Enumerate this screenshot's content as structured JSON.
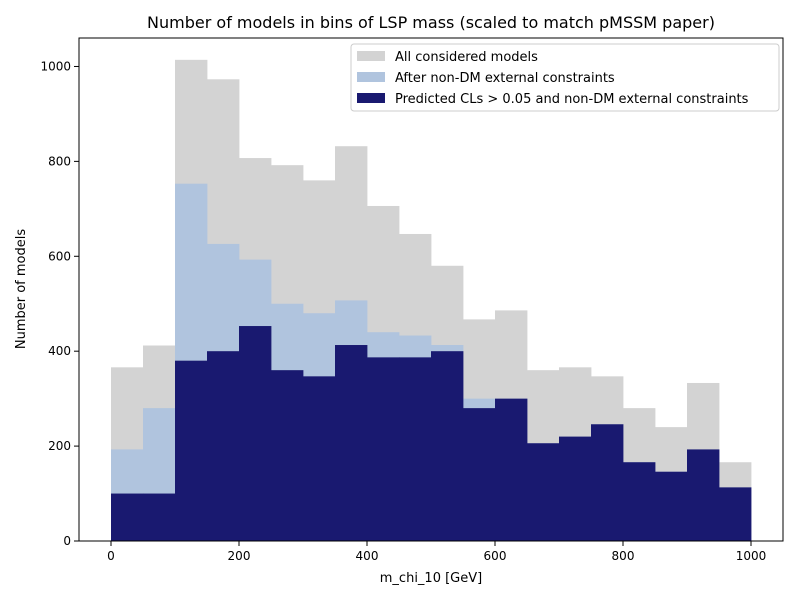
{
  "chart_data": {
    "type": "bar",
    "title": "Number of models in bins of LSP mass (scaled to match pMSSM paper)",
    "xlabel": "m_chi_10 [GeV]",
    "ylabel": "Number of models",
    "xlim": [
      -50,
      1050
    ],
    "ylim": [
      0,
      1060
    ],
    "bin_edges": [
      0,
      50,
      100,
      150,
      200,
      250,
      300,
      350,
      400,
      450,
      500,
      550,
      600,
      650,
      700,
      750,
      800,
      850,
      900,
      950,
      1000
    ],
    "xticks": [
      0,
      200,
      400,
      600,
      800,
      1000
    ],
    "yticks": [
      0,
      200,
      400,
      600,
      800,
      1000
    ],
    "legend_position": "top-right",
    "series": [
      {
        "name": "All considered models",
        "color": "#d3d3d3",
        "values": [
          366,
          412,
          1014,
          973,
          807,
          792,
          760,
          832,
          706,
          647,
          580,
          467,
          486,
          360,
          366,
          347,
          280,
          240,
          333,
          166
        ]
      },
      {
        "name": "After non-DM external constraints",
        "color": "#b0c4de",
        "values": [
          193,
          280,
          753,
          626,
          593,
          500,
          480,
          507,
          440,
          433,
          413,
          300,
          300,
          206,
          220,
          246,
          166,
          146,
          193,
          113
        ]
      },
      {
        "name": "Predicted CLs > 0.05 and non-DM external constraints",
        "color": "#191970",
        "values": [
          100,
          100,
          380,
          400,
          453,
          360,
          347,
          413,
          387,
          387,
          400,
          280,
          300,
          206,
          220,
          246,
          166,
          146,
          193,
          113
        ]
      }
    ]
  }
}
